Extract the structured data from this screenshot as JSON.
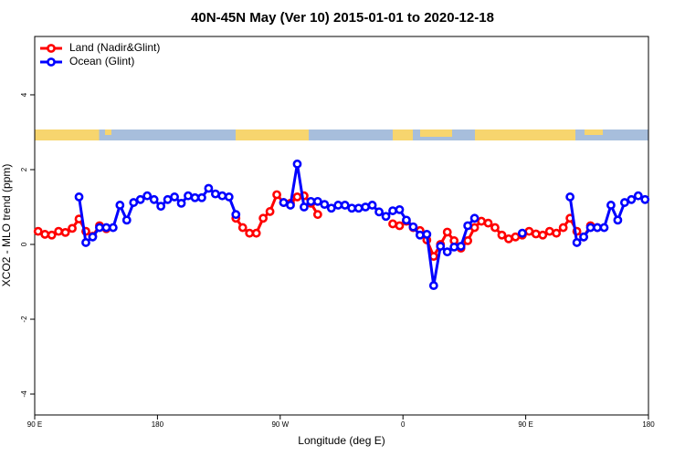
{
  "chart_data": {
    "type": "line",
    "title": "40N-45N May (Ver 10)   2015-01-01 to 2020-12-18",
    "xlabel": "Longitude (deg E)",
    "ylabel": "XCO2 - MLO trend (ppm)",
    "xlim": [
      -270,
      180
    ],
    "ylim": [
      -4.56,
      5.56
    ],
    "xticks": [
      {
        "value": -270,
        "label": "90 E"
      },
      {
        "value": -180,
        "label": "180"
      },
      {
        "value": -90,
        "label": "90 W"
      },
      0,
      {
        "value": 90,
        "label": "90 E"
      },
      {
        "value": 180,
        "label": "180"
      }
    ],
    "yticks": [
      -4,
      -2,
      0,
      2,
      4
    ],
    "legend": "top-left",
    "series": [
      {
        "name": "Land (Nadir&Glint)",
        "color": "#ff0000",
        "x": [
          -267.5,
          -262.5,
          -257.5,
          -252.5,
          -247.5,
          -242.5,
          -237.5,
          -232.5,
          -227.5,
          -222.5,
          -217.5,
          -170,
          -122.5,
          -117.5,
          -112.5,
          -107.5,
          -102.5,
          -97.5,
          -92.5,
          -87.5,
          -82.5,
          -77.5,
          -72.5,
          -67.5,
          -62.5,
          -35,
          -7.5,
          -2.5,
          2.5,
          7.5,
          12.5,
          17.5,
          22.5,
          27.5,
          32.5,
          37.5,
          42.5,
          47.5,
          52.5,
          57.5,
          62.5,
          67.5,
          72.5,
          77.5,
          82.5,
          87.5,
          92.5,
          97.5,
          102.5,
          107.5,
          112.5,
          117.5,
          122.5,
          127.5,
          132.5,
          137.5,
          142.5
        ],
        "values": [
          0.35,
          0.27,
          0.25,
          0.35,
          0.32,
          0.43,
          0.68,
          0.35,
          0.22,
          0.5,
          0.42,
          null,
          0.7,
          0.45,
          0.3,
          0.3,
          0.7,
          0.88,
          1.33,
          1.12,
          1.1,
          1.27,
          1.3,
          1.1,
          0.8,
          null,
          0.55,
          0.5,
          0.62,
          0.45,
          0.37,
          0.12,
          -0.32,
          0.0,
          0.33,
          0.1,
          -0.1,
          0.1,
          0.45,
          0.62,
          0.57,
          0.45,
          0.25,
          0.15,
          0.2,
          0.25,
          0.35,
          0.28,
          0.25,
          0.35,
          0.3,
          0.45,
          0.7,
          0.35,
          0.2,
          0.5,
          0.45
        ]
      },
      {
        "name": "Ocean (Glint)",
        "color": "#0000ff",
        "x": [
          -237.5,
          -232.5,
          -227.5,
          -222.5,
          -217.5,
          -212.5,
          -207.5,
          -202.5,
          -197.5,
          -192.5,
          -187.5,
          -182.5,
          -177.5,
          -172.5,
          -167.5,
          -162.5,
          -157.5,
          -152.5,
          -147.5,
          -142.5,
          -137.5,
          -132.5,
          -127.5,
          -122.5,
          -105,
          -87.5,
          -82.5,
          -77.5,
          -72.5,
          -67.5,
          -62.5,
          -57.5,
          -52.5,
          -47.5,
          -42.5,
          -37.5,
          -32.5,
          -27.5,
          -22.5,
          -17.5,
          -12.5,
          -7.5,
          -2.5,
          2.5,
          7.5,
          12.5,
          17.5,
          22.5,
          27.5,
          32.5,
          37.5,
          42.5,
          47.5,
          52.5,
          70,
          87.5,
          105,
          122.5,
          127.5,
          132.5,
          137.5,
          142.5,
          147.5,
          152.5,
          157.5,
          162.5,
          167.5,
          172.5,
          177.5
        ],
        "values": [
          1.27,
          0.05,
          0.2,
          0.45,
          0.45,
          0.45,
          1.05,
          0.65,
          1.12,
          1.2,
          1.3,
          1.2,
          1.02,
          1.2,
          1.27,
          1.1,
          1.3,
          1.25,
          1.25,
          1.5,
          1.35,
          1.3,
          1.27,
          0.8,
          null,
          1.12,
          1.05,
          2.15,
          1.0,
          1.15,
          1.15,
          1.07,
          0.97,
          1.05,
          1.05,
          0.97,
          0.97,
          1.0,
          1.05,
          0.87,
          0.75,
          0.9,
          0.93,
          0.65,
          0.47,
          0.25,
          0.27,
          -1.1,
          -0.05,
          -0.2,
          -0.07,
          -0.05,
          0.5,
          0.7,
          null,
          0.3,
          null,
          1.27,
          0.05,
          0.2,
          0.45,
          0.45,
          0.45,
          1.05,
          0.65,
          1.12,
          1.2,
          1.3,
          1.2
        ]
      }
    ]
  }
}
